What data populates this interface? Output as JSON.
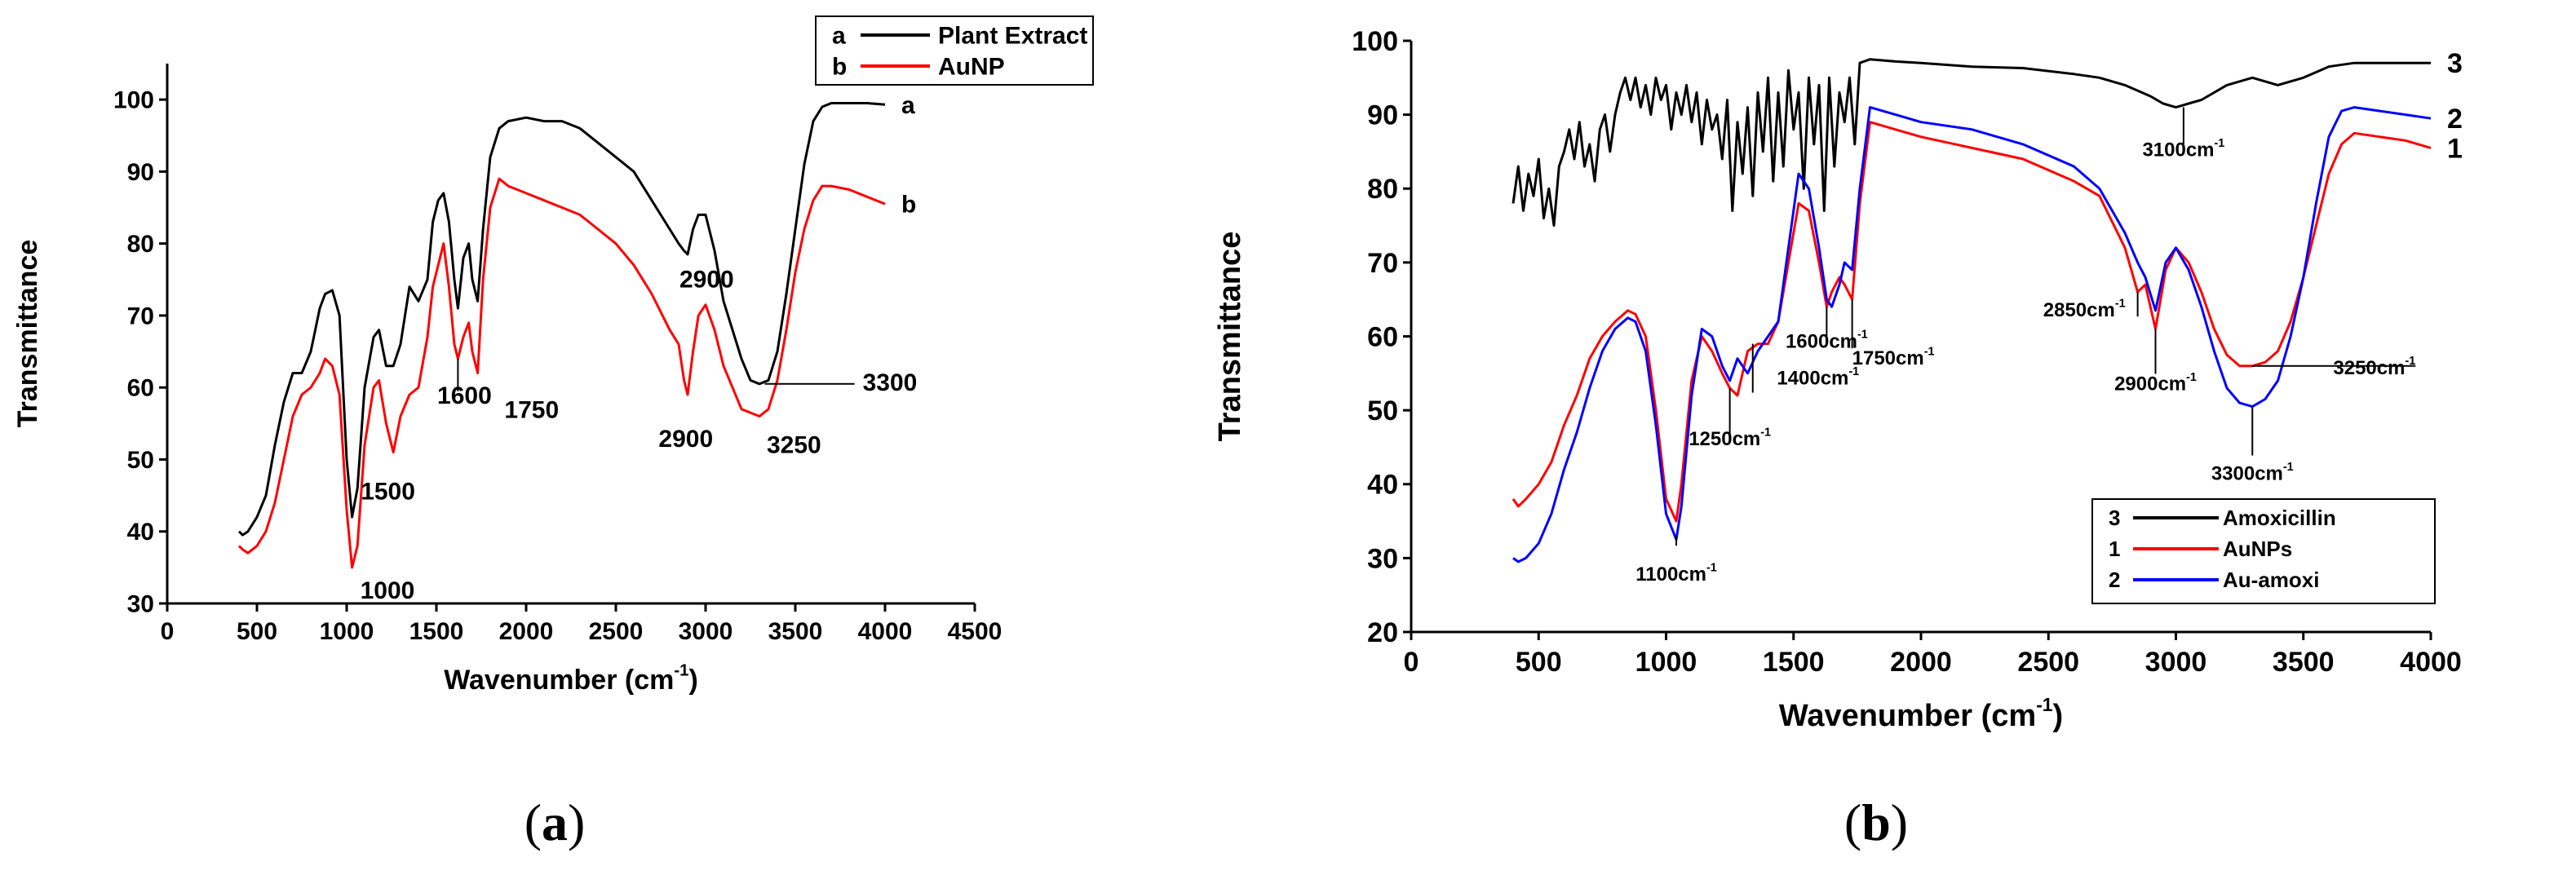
{
  "charts": [
    {
      "id": "a",
      "caption_letter": "a",
      "chart_data": {
        "type": "line",
        "title": "",
        "xlabel": "Wavenumber (cm",
        "xlabel_sup": "-1",
        "xlabel_close": ")",
        "ylabel": "Transmittance",
        "xlim": [
          0,
          4500
        ],
        "ylim": [
          30,
          105
        ],
        "xticks": [
          0,
          500,
          1000,
          1500,
          2000,
          2500,
          3000,
          3500,
          4000,
          4500
        ],
        "yticks": [
          30,
          40,
          50,
          60,
          70,
          80,
          90,
          100
        ],
        "legend": [
          {
            "key": "a",
            "label": "Plant Extract",
            "color": "#000000"
          },
          {
            "key": "b",
            "label": "AuNP",
            "color": "#ff0000"
          }
        ],
        "series": [
          {
            "name": "Plant Extract",
            "end_label": "a",
            "color": "#000000",
            "x": [
              400,
              420,
              450,
              500,
              550,
              600,
              650,
              700,
              750,
              800,
              850,
              880,
              920,
              960,
              1000,
              1030,
              1060,
              1100,
              1150,
              1180,
              1220,
              1260,
              1300,
              1350,
              1400,
              1450,
              1480,
              1510,
              1540,
              1570,
              1600,
              1620,
              1650,
              1680,
              1700,
              1730,
              1760,
              1800,
              1850,
              1900,
              2000,
              2100,
              2200,
              2300,
              2400,
              2500,
              2600,
              2700,
              2800,
              2850,
              2880,
              2900,
              2930,
              2960,
              3000,
              3050,
              3100,
              3200,
              3250,
              3300,
              3350,
              3400,
              3450,
              3500,
              3550,
              3600,
              3650,
              3700,
              3800,
              3900,
              4000
            ],
            "y": [
              40,
              39.5,
              40,
              42,
              45,
              52,
              58,
              62,
              62,
              65,
              71,
              73,
              73.5,
              70,
              50,
              42,
              46,
              60,
              67,
              68,
              63,
              63,
              66,
              74,
              72,
              75,
              83,
              86,
              87,
              83,
              75,
              71,
              78,
              80,
              75,
              72,
              82,
              92,
              96,
              97,
              97.5,
              97,
              97,
              96,
              94,
              92,
              90,
              86,
              82,
              80,
              79,
              78.5,
              82,
              84,
              84,
              79,
              72,
              64,
              61,
              60.5,
              61,
              65,
              73,
              82,
              91,
              97,
              99,
              99.5,
              99.5,
              99.5,
              99.3
            ]
          },
          {
            "name": "AuNP",
            "end_label": "b",
            "color": "#ff0000",
            "x": [
              400,
              420,
              450,
              500,
              550,
              600,
              650,
              700,
              750,
              800,
              850,
              880,
              920,
              960,
              1000,
              1030,
              1060,
              1100,
              1150,
              1180,
              1220,
              1260,
              1300,
              1350,
              1400,
              1450,
              1480,
              1510,
              1540,
              1570,
              1600,
              1620,
              1650,
              1680,
              1700,
              1730,
              1760,
              1800,
              1850,
              1900,
              2000,
              2100,
              2200,
              2300,
              2400,
              2500,
              2600,
              2700,
              2800,
              2850,
              2880,
              2900,
              2930,
              2960,
              3000,
              3050,
              3100,
              3150,
              3200,
              3250,
              3300,
              3350,
              3400,
              3450,
              3500,
              3550,
              3600,
              3650,
              3700,
              3800,
              3900,
              4000
            ],
            "y": [
              38,
              37.5,
              37,
              38,
              40,
              44,
              50,
              56,
              59,
              60,
              62,
              64,
              63,
              59,
              43,
              35,
              38,
              52,
              60,
              61,
              55,
              51,
              56,
              59,
              60,
              67,
              74,
              77,
              80,
              74,
              66,
              64,
              67,
              69,
              65,
              62,
              75,
              85,
              89,
              88,
              87,
              86,
              85,
              84,
              82,
              80,
              77,
              73,
              68,
              66,
              61,
              59,
              65,
              70,
              71.5,
              68,
              63,
              60,
              57,
              56.5,
              56,
              57,
              61,
              68,
              76,
              82,
              86,
              88,
              88,
              87.5,
              86.5,
              85.5
            ]
          }
        ],
        "annotations": [
          {
            "text": "1000",
            "x": 1030,
            "y": 35
          },
          {
            "text": "1500",
            "x": 1260,
            "y": 51
          },
          {
            "text": "1600",
            "x": 1620,
            "y": 64
          },
          {
            "text": "1750",
            "x": 1720,
            "y": 62
          },
          {
            "text": "2900",
            "x": 2890,
            "y": 58
          },
          {
            "text": "3250",
            "x": 3250,
            "y": 56
          },
          {
            "text": "2900",
            "x": 2900,
            "y": 79
          },
          {
            "text": "3300",
            "x": 3330,
            "y": 60.5
          }
        ]
      }
    },
    {
      "id": "b",
      "caption_letter": "b",
      "chart_data": {
        "type": "line",
        "title": "",
        "xlabel": "Wavenumber (cm",
        "xlabel_sup": "-1",
        "xlabel_close": ")",
        "ylabel": "Transmittance",
        "xlim": [
          0,
          4000
        ],
        "ylim": [
          20,
          100
        ],
        "xticks": [
          0,
          500,
          1000,
          1500,
          2000,
          2500,
          3000,
          3500,
          4000
        ],
        "yticks": [
          20,
          30,
          40,
          50,
          60,
          70,
          80,
          90,
          100
        ],
        "legend": [
          {
            "key": "3",
            "label": "Amoxicillin",
            "color": "#000000"
          },
          {
            "key": "1",
            "label": "AuNPs",
            "color": "#ff0000"
          },
          {
            "key": "2",
            "label": "Au-amoxi",
            "color": "#0000ff"
          }
        ],
        "series": [
          {
            "name": "Amoxicillin",
            "end_label": "3",
            "color": "#000000",
            "x": [
              400,
              420,
              440,
              460,
              480,
              500,
              520,
              540,
              560,
              580,
              600,
              620,
              640,
              660,
              680,
              700,
              720,
              740,
              760,
              780,
              800,
              820,
              840,
              860,
              880,
              900,
              920,
              940,
              960,
              980,
              1000,
              1020,
              1040,
              1060,
              1080,
              1100,
              1120,
              1140,
              1160,
              1180,
              1200,
              1220,
              1240,
              1260,
              1280,
              1300,
              1320,
              1340,
              1360,
              1380,
              1400,
              1420,
              1440,
              1460,
              1480,
              1500,
              1520,
              1540,
              1560,
              1580,
              1600,
              1620,
              1640,
              1660,
              1680,
              1700,
              1720,
              1740,
              1760,
              1800,
              1900,
              2000,
              2200,
              2400,
              2600,
              2700,
              2800,
              2900,
              2950,
              3000,
              3050,
              3100,
              3200,
              3300,
              3400,
              3500,
              3600,
              3700,
              3800,
              4000
            ],
            "y": [
              78,
              83,
              77,
              82,
              79,
              84,
              76,
              80,
              75,
              83,
              85,
              88,
              84,
              89,
              83,
              86,
              81,
              88,
              90,
              85,
              90,
              93,
              95,
              92,
              95,
              91,
              94,
              90,
              95,
              92,
              94,
              88,
              93,
              90,
              94,
              89,
              93,
              86,
              92,
              88,
              90,
              84,
              92,
              77,
              89,
              82,
              91,
              79,
              93,
              85,
              95,
              81,
              93,
              83,
              96,
              88,
              93,
              80,
              95,
              86,
              94,
              77,
              95,
              83,
              93,
              89,
              95,
              86,
              97,
              97.5,
              97.2,
              97,
              96.5,
              96.3,
              95.5,
              95,
              94,
              92.5,
              91.5,
              91,
              91.5,
              92,
              94,
              95,
              94,
              95,
              96.5,
              97,
              97,
              97
            ]
          },
          {
            "name": "AuNPs",
            "end_label": "1",
            "color": "#ff0000",
            "x": [
              400,
              420,
              450,
              500,
              550,
              600,
              650,
              700,
              750,
              800,
              850,
              880,
              920,
              960,
              1000,
              1040,
              1060,
              1100,
              1140,
              1180,
              1220,
              1250,
              1280,
              1320,
              1360,
              1400,
              1440,
              1480,
              1520,
              1560,
              1600,
              1630,
              1650,
              1680,
              1700,
              1730,
              1760,
              1800,
              1900,
              2000,
              2200,
              2400,
              2600,
              2700,
              2800,
              2850,
              2880,
              2920,
              2960,
              3000,
              3050,
              3100,
              3150,
              3200,
              3250,
              3300,
              3350,
              3400,
              3450,
              3500,
              3550,
              3600,
              3650,
              3700,
              3800,
              3900,
              4000
            ],
            "y": [
              38,
              37,
              38,
              40,
              43,
              48,
              52,
              57,
              60,
              62,
              63.5,
              63,
              60,
              50,
              38,
              35,
              40,
              54,
              60,
              58,
              55,
              53,
              52,
              58,
              59,
              59,
              62,
              70,
              78,
              77,
              70,
              64,
              66,
              68,
              67,
              65,
              78,
              89,
              88,
              87,
              85.5,
              84,
              81,
              79,
              72,
              66,
              67,
              61,
              69,
              72,
              70,
              66,
              61,
              57.5,
              56,
              56,
              56.5,
              58,
              62,
              68,
              75,
              82,
              86,
              87.5,
              87,
              86.5,
              85.5
            ]
          },
          {
            "name": "Au-amoxi",
            "end_label": "2",
            "color": "#0000ff",
            "x": [
              400,
              420,
              450,
              500,
              550,
              600,
              650,
              700,
              750,
              800,
              850,
              880,
              920,
              960,
              1000,
              1040,
              1060,
              1100,
              1140,
              1180,
              1220,
              1250,
              1280,
              1320,
              1360,
              1400,
              1440,
              1480,
              1520,
              1560,
              1600,
              1630,
              1650,
              1680,
              1700,
              1730,
              1760,
              1800,
              1900,
              2000,
              2200,
              2400,
              2600,
              2700,
              2800,
              2850,
              2880,
              2920,
              2960,
              3000,
              3050,
              3100,
              3150,
              3200,
              3250,
              3300,
              3350,
              3400,
              3450,
              3500,
              3550,
              3600,
              3650,
              3700,
              3800,
              3900,
              4000
            ],
            "y": [
              30,
              29.5,
              30,
              32,
              36,
              42,
              47,
              53,
              58,
              61,
              62.5,
              62,
              58,
              48,
              36,
              32.5,
              37,
              52,
              61,
              60,
              56,
              54,
              57,
              55,
              58,
              60,
              62,
              72,
              82,
              80,
              72,
              65,
              64,
              67,
              70,
              69,
              80,
              91,
              90,
              89,
              88,
              86,
              83,
              80,
              74,
              70,
              68,
              63.5,
              70,
              72,
              69,
              64,
              58,
              53,
              51,
              50.5,
              51.5,
              54,
              60,
              68,
              78,
              87,
              90.5,
              91,
              90.5,
              90,
              89.5
            ]
          }
        ],
        "annotations": [
          {
            "text": "1100cm",
            "sup": "-1",
            "x": 1040,
            "y": 33
          },
          {
            "text": "1250cm",
            "sup": "-1",
            "x": 1250,
            "y": 53
          },
          {
            "text": "1400cm",
            "sup": "-1",
            "x": 1340,
            "y": 59
          },
          {
            "text": "1600cm",
            "sup": "-1",
            "x": 1630,
            "y": 64
          },
          {
            "text": "1750cm",
            "sup": "-1",
            "x": 1730,
            "y": 65
          },
          {
            "text": "2850cm",
            "sup": "-1",
            "x": 2850,
            "y": 66
          },
          {
            "text": "2900cm",
            "sup": "-1",
            "x": 2920,
            "y": 61
          },
          {
            "text": "3250cm",
            "sup": "-1",
            "x": 3300,
            "y": 56
          },
          {
            "text": "3300cm",
            "sup": "-1",
            "x": 3300,
            "y": 50.5
          },
          {
            "text": "3100cm",
            "sup": "-1",
            "x": 3030,
            "y": 91
          }
        ]
      }
    }
  ]
}
